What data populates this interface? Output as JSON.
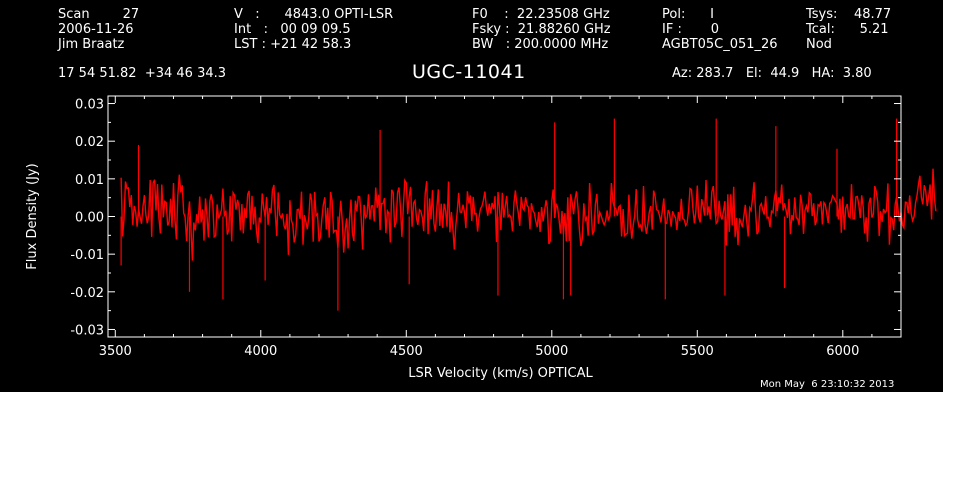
{
  "header": {
    "col1": [
      "Scan        27",
      "2006-11-26",
      "Jim Braatz"
    ],
    "col2": [
      "V   :      4843.0 OPTI-LSR",
      "Int   :   00 09 09.5",
      "LST : +21 42 58.3"
    ],
    "col3": [
      "F0    :  22.23508 GHz",
      "Fsky :  21.88260 GHz",
      "BW   : 200.0000 MHz"
    ],
    "col4": [
      "Pol:      I",
      "IF :       0",
      "AGBT05C_051_26"
    ],
    "col5": [
      "",
      "",
      "Nod"
    ],
    "col6": [
      "Tsys:    48.77",
      "Tcal:      5.21",
      ""
    ]
  },
  "coords": "17 54 51.82  +34 46 34.3",
  "source_name": "UGC-11041",
  "telescope_pos": "Az: 283.7   El:  44.9   HA:  3.80",
  "timestamp": "Mon May  6 23:10:32 2013",
  "colors": {
    "background": "#000000",
    "trace": "#ff0000",
    "axes": "#ffffff"
  },
  "chart_data": {
    "type": "line",
    "title": "UGC-11041",
    "xlabel": "LSR Velocity (km/s) OPTICAL",
    "ylabel": "Flux Density (Jy)",
    "xlim": [
      3475,
      6200
    ],
    "ylim": [
      -0.032,
      0.032
    ],
    "xticks": [
      3500,
      4000,
      4500,
      5000,
      5500,
      6000
    ],
    "xtick_labels": [
      "3500",
      "4000",
      "4500",
      "5000",
      "5500",
      "6000"
    ],
    "yticks": [
      0.03,
      0.02,
      0.01,
      0.0,
      -0.01,
      -0.02,
      -0.03
    ],
    "ytick_labels": [
      "0.03",
      "0.02",
      "0.01",
      "0.00",
      "-0.01",
      "-0.02",
      "-0.03"
    ],
    "grid": false,
    "series": [
      {
        "x_start": 3520,
        "x_end": 6185,
        "x_step": 5,
        "values": [
          0.0103,
          -0.0053,
          -0.0005,
          0.0093,
          0.0075,
          0.0076,
          0.0025,
          0.0057,
          -0.0022,
          0.0028,
          0.0014,
          -0.0027,
          0.0019,
          0.0,
          -0.0019,
          0.0025,
          0.0057,
          0.0006,
          -0.0018,
          0.0002,
          0.0097,
          -0.0054,
          0.0089,
          0.0098,
          0.0016,
          0.0086,
          -0.0003,
          -0.0045,
          0.0085,
          -0.0002,
          0.004,
          0.0037,
          -0.0024,
          -0.0015,
          0.0047,
          -0.0029,
          0.0089,
          -0.0006,
          -0.0061,
          0.0055,
          0.0111,
          0.0064,
          0.0083,
          0.0009,
          -0.0001,
          -0.0065,
          -0.0002,
          0.004,
          -0.0029,
          -0.0117,
          -0.0016,
          -0.0037,
          0.0006,
          -0.0017,
          0.0053,
          -0.0016,
          0.0019,
          -0.0064,
          0.0048,
          0.0005,
          -0.0055,
          0.0042,
          0.0059,
          0.0034,
          -0.0054,
          -0.0051,
          0.0032,
          -0.0005,
          0.0004,
          0.0018,
          0.0074,
          0.0,
          0.0016,
          -0.0048,
          -0.0034,
          0.0054,
          -0.0066,
          0.0063,
          0.0056,
          0.0018,
          0.0044,
          0.0029,
          -0.0037,
          0.0033,
          -0.0045,
          0.0022,
          -0.0004,
          0.0059,
          0.0068,
          -0.0035,
          0.0055,
          -0.0021,
          0.0026,
          -0.0036,
          -0.007,
          -0.0003,
          -0.0016,
          0.0061,
          0.0024,
          -0.0001,
          0.0052,
          -0.0022,
          0.0022,
          0.0009,
          0.0069,
          0.0084,
          0.0006,
          -0.0052,
          0.0064,
          0.0004,
          -0.0004,
          0.0008,
          -0.0025,
          -0.0034,
          0.0007,
          -0.0102,
          0.0043,
          -0.0009,
          -0.0022,
          -0.0069,
          -0.005,
          0.0018,
          0.0019,
          -0.0006,
          0.0066,
          -0.0075,
          0.0004,
          -0.0014,
          -0.0034,
          -0.0002,
          0.0061,
          0.0043,
          -0.0067,
          0.0065,
          0.0002,
          0.0007,
          -0.0066,
          -0.0055,
          -0.0005,
          0.0031,
          0.0051,
          -0.0034,
          0.0023,
          -0.0056,
          0.0065,
          0.0042,
          -0.0042,
          -0.0037,
          -0.0037,
          -0.0083,
          -0.0006,
          0.0042,
          -0.0014,
          -0.0096,
          -0.0036,
          -0.0005,
          -0.0085,
          -0.0007,
          0.0045,
          -0.0044,
          -0.0065,
          0.0042,
          0.0014,
          0.0053,
          0.0052,
          -0.0004,
          -0.0088,
          0.0031,
          -0.0003,
          0.0004,
          0.0059,
          -0.0008,
          0.0028,
          0.0029,
          -0.0013,
          0.0077,
          0.0023,
          0.0058,
          -0.0036,
          0.0034,
          0.0034,
          0.0049,
          -0.0044,
          0.0015,
          0.0009,
          -0.0069,
          0.0071,
          0.0063,
          -0.0028,
          -0.0014,
          0.0064,
          0.0077,
          0.0021,
          -0.0054,
          0.0028,
          0.0096,
          0.0089,
          0.0006,
          0.0053,
          0.0079,
          -0.0027,
          0.0036,
          0.0042,
          -0.0005,
          -0.0022,
          0.0018,
          0.0014,
          -0.0003,
          -0.0039,
          0.0061,
          0.0094,
          -0.0047,
          0.0048,
          -0.0007,
          0.007,
          -0.0018,
          -0.004,
          0.002,
          0.0072,
          -0.0025,
          0.0034,
          -0.003,
          0.0034,
          0.0016,
          -0.0027,
          0.0093,
          -0.0042,
          0.0012,
          -0.0029,
          -0.0088,
          -0.0024,
          0.0012,
          0.0063,
          0.0012,
          0.0011,
          0.0031,
          0.0011,
          -0.0031,
          0.0067,
          0.0035,
          0.0056,
          -0.0012,
          0.0052,
          0.0007,
          0.0008,
          -0.004,
          -0.0002,
          0.0021,
          0.0027,
          0.0043,
          0.0066,
          0.0026,
          0.0002,
          0.0034,
          0.0009,
          0.0036,
          0.0019,
          0.0054,
          -0.0068,
          0.0065,
          0.0026,
          -0.0036,
          0.0063,
          -0.0003,
          0.0026,
          0.0055,
          0.0,
          0.0004,
          -0.0003,
          -0.0039,
          0.0037,
          0.0069,
          0.0032,
          0.0009,
          -0.0025,
          0.0052,
          0.0024,
          0.0017,
          0.0051,
          0.003,
          0.0024,
          -0.0034,
          0.0035,
          0.0016,
          0.0009,
          -0.0013,
          -0.0028,
          0.0012,
          -0.0041,
          0.0025,
          -0.0013,
          0.0014,
          0.0043,
          0.0022,
          -0.0073,
          -0.0064,
          0.0042,
          0.0072,
          -0.0004,
          0.0032,
          0.0025,
          -0.0009,
          -0.0045,
          0.0015,
          -0.0047,
          0.0009,
          -0.0066,
          0.0051,
          -0.0065,
          0.0059,
          0.0037,
          0.0006,
          0.0047,
          0.0067,
          0.0023,
          -0.0036,
          -0.0078,
          -0.0058,
          0.0035,
          -0.001,
          -0.0002,
          -0.0051,
          0.0089,
          0.0021,
          -0.0048,
          -0.0038,
          0.0033,
          0.006,
          -0.0019,
          0.0011,
          0.0001,
          -0.0012,
          -0.0022,
          -0.0012,
          0.0016,
          -0.0011,
          0.0002,
          0.0089,
          0.004,
          0.0024,
          0.0021,
          0.0002,
          0.0025,
          0.0029,
          -0.0053,
          0.002,
          -0.0051,
          -0.0047,
          -0.0044,
          0.0058,
          -0.0018,
          -0.0059,
          -0.0021,
          0.0002,
          0.0073,
          -0.0008,
          -0.0028,
          -0.0023,
          -0.004,
          0.0081,
          -0.0018,
          -0.0046,
          -0.0021,
          0.0012,
          0.0028,
          -0.0035,
          0.0069,
          0.0053,
          0.0018,
          0.0016,
          0.0003,
          -0.0016,
          0.0017,
          0.0048,
          -0.0017,
          -0.0018,
          0.0017,
          0.0008,
          -0.0027,
          0.0014,
          0.0004,
          -0.0003,
          -0.0036,
          0.0012,
          -0.0012,
          0.0047,
          -0.0005,
          -0.0008,
          -0.0024,
          -0.0017,
          0.0017,
          0.0074,
          0.0071,
          0.0021,
          -0.0018,
          0.0012,
          0.0082,
          -0.0001,
          -0.0016,
          0.0046,
          0.0029,
          0.0002,
          0.0097,
          0.0003,
          0.0027,
          -0.0007,
          0.0065,
          0.0081,
          0.0024,
          -0.0018,
          -0.0013,
          0.0042,
          0.0003,
          -0.0008,
          0.0015,
          0.0041,
          -0.0077,
          0.0059,
          -0.0041,
          0.0059,
          -0.0023,
          0.0079,
          -0.0054,
          -0.0004,
          -0.0076,
          -0.0005,
          -0.0016,
          -0.0028,
          0.0002,
          0.0031,
          -0.0014,
          -0.0053,
          0.0023,
          0.0016,
          0.005,
          0.0091,
          0.0016,
          -0.0047,
          -0.0039,
          0.0027,
          0.0034,
          0.0017,
          0.0005,
          0.0054,
          -0.0004,
          -0.0002,
          -0.0028,
          0.0014,
          0.0011,
          0.0049,
          0.0069,
          0.0015,
          0.0051,
          0.0036,
          0.0085,
          0.0016,
          0.0035,
          0.0016,
          -0.0004,
          0.0047,
          -0.0047,
          0.0004,
          -0.0011,
          0.0051,
          -0.0003,
          -0.0006,
          -0.0022,
          0.0058,
          0.003,
          -0.0046,
          0.0016,
          0.0028,
          0.0011,
          0.0063,
          0.0059,
          0.0001,
          0.0035,
          -0.0023,
          -0.001,
          0.0031,
          0.0028,
          0.004,
          -0.0021,
          0.0037,
          0.0031,
          0.0007,
          -0.0017,
          0.0035,
          0.0039,
          0.0055,
          0.0049,
          0.0041,
          0.0034,
          -0.0008,
          0.0047,
          -0.0043,
          0.0053,
          -0.0035,
          0.0022,
          0.0033,
          0.0001,
          -0.0003,
          0.0086,
          -0.0006,
          -0.0006,
          0.0052,
          0.0053,
          0.0032,
          -0.0004,
          0.0056,
          0.0025,
          -0.0045,
          -0.0002,
          -0.0067,
          0.0035,
          0.005,
          -0.0003,
          0.0006,
          0.0081,
          0.0066,
          0.004,
          -0.0052,
          0.0014,
          -0.0014,
          0.002,
          0.001,
          0.0015,
          0.0088,
          -0.0075,
          -0.0003,
          -0.0007,
          -0.0036,
          0.0033,
          0.0052,
          0.0016,
          -0.0013,
          0.0011,
          -0.0023,
          -0.003,
          0.0038,
          0.0037,
          0.0009,
          0.0056,
          0.0006,
          -0.0011,
          0.0,
          0.0037,
          0.0055,
          0.0086,
          0.0108,
          0.005,
          0.0032,
          0.0083,
          0.0068,
          0.0028,
          0.0052,
          0.0085,
          -0.0008,
          0.0127,
          0.0046,
          0.0014
        ]
      }
    ],
    "highlights": [
      {
        "x": 3520,
        "y": -0.013
      },
      {
        "x": 3580,
        "y": 0.019
      },
      {
        "x": 3755,
        "y": -0.02
      },
      {
        "x": 3870,
        "y": -0.022
      },
      {
        "x": 4015,
        "y": -0.017
      },
      {
        "x": 4265,
        "y": -0.025
      },
      {
        "x": 4410,
        "y": 0.023
      },
      {
        "x": 4510,
        "y": -0.018
      },
      {
        "x": 4815,
        "y": -0.021
      },
      {
        "x": 5010,
        "y": 0.025
      },
      {
        "x": 5040,
        "y": -0.022
      },
      {
        "x": 5065,
        "y": -0.021
      },
      {
        "x": 5215,
        "y": 0.026
      },
      {
        "x": 5390,
        "y": -0.022
      },
      {
        "x": 5565,
        "y": 0.026
      },
      {
        "x": 5595,
        "y": -0.021
      },
      {
        "x": 5770,
        "y": 0.024
      },
      {
        "x": 5800,
        "y": -0.019
      },
      {
        "x": 5980,
        "y": 0.018
      },
      {
        "x": 6185,
        "y": 0.026
      }
    ]
  }
}
